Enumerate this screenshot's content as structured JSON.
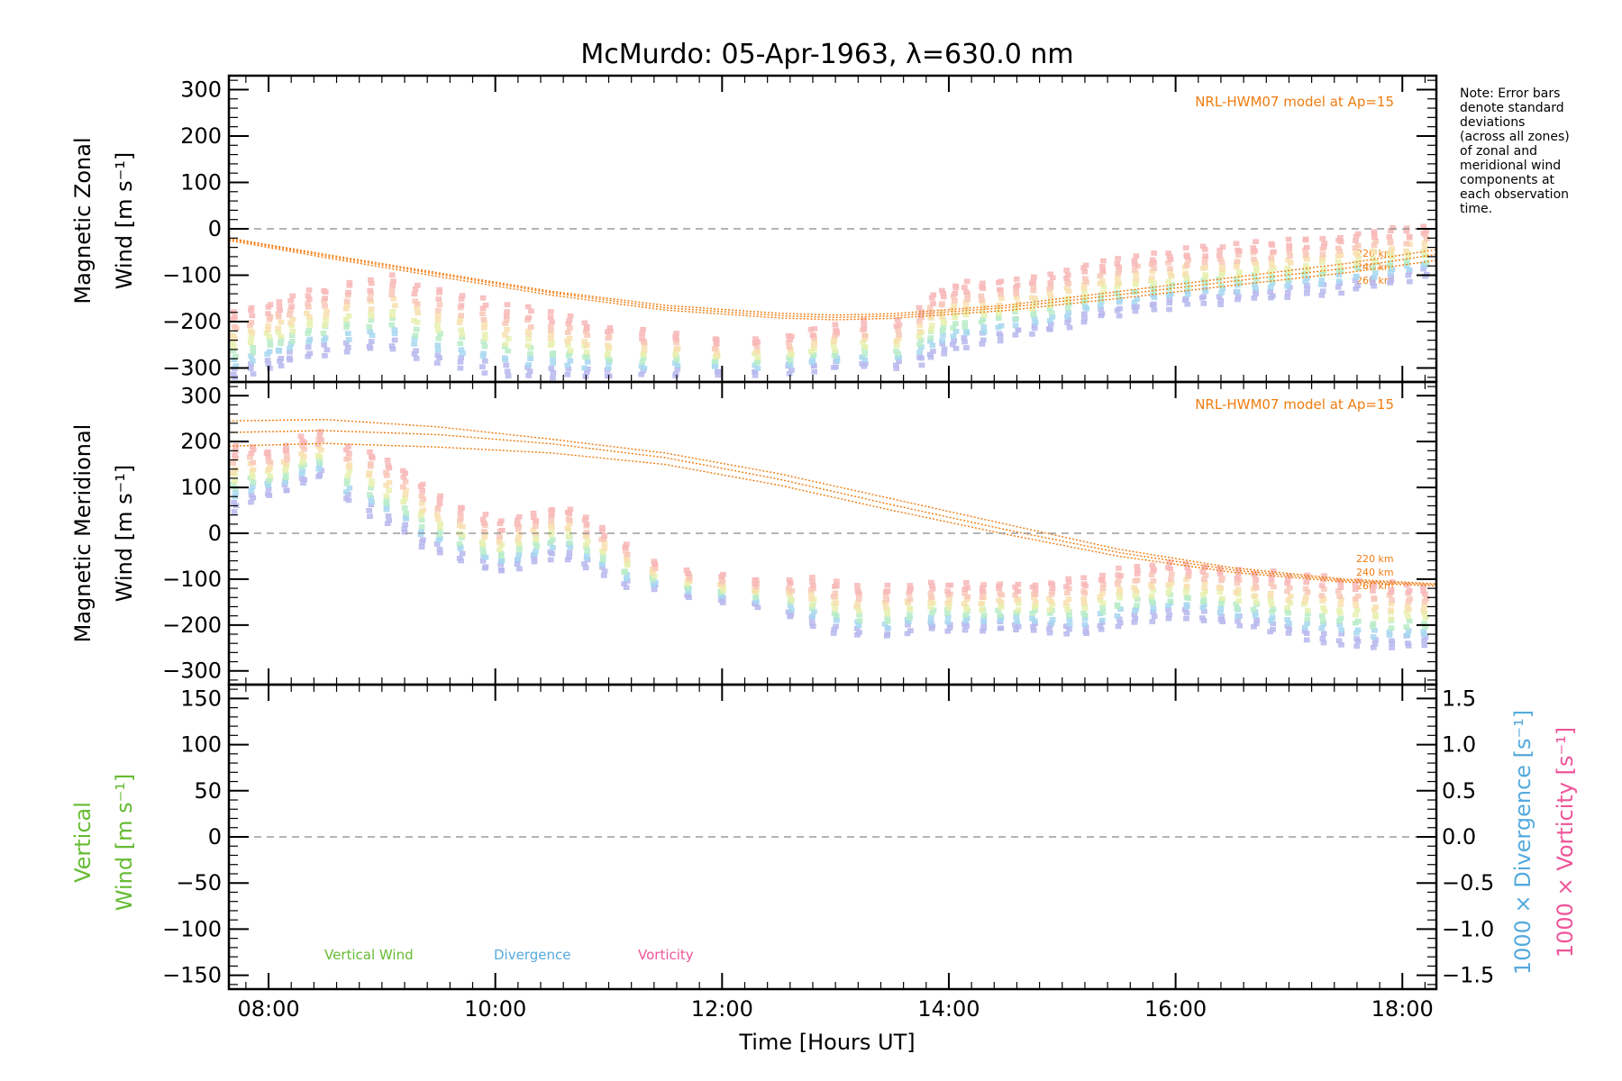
{
  "chart_data": {
    "type": "scatter",
    "title": "McMurdo: 05-Apr-1963, λ=630.0 nm",
    "note_lines": [
      "Note: Error bars",
      "denote standard",
      "deviations",
      "(across all zones)",
      "of zonal and",
      "meridional wind",
      "components at",
      "each observation",
      "time."
    ],
    "colors": {
      "model": "#f07c10",
      "vertical": "#66bb33",
      "divergence": "#55aadd",
      "vorticity": "#ee5599",
      "zero_line": "#888888"
    },
    "x": {
      "label": "Time [Hours UT]",
      "range_hours": [
        7.65,
        18.3
      ],
      "tick_values": [
        8,
        10,
        12,
        14,
        16,
        18
      ],
      "tick_labels": [
        "08:00",
        "10:00",
        "12:00",
        "14:00",
        "16:00",
        "18:00"
      ]
    },
    "panels": [
      {
        "id": "zonal",
        "ylabel_line1": "Magnetic Zonal",
        "ylabel_line2": "Wind [m s⁻¹]",
        "ylim": [
          -330,
          330
        ],
        "yticks": [
          300,
          200,
          100,
          0,
          -100,
          -200,
          -300
        ],
        "ytick_labels": [
          "300",
          "200",
          "100",
          "0",
          "−100",
          "−200",
          "−300"
        ],
        "model_label": "NRL-HWM07 model at Ap=15",
        "altitude_labels": [
          "220 km",
          "240 km",
          "260 km"
        ],
        "model_curves": [
          {
            "x": [
              7.65,
              8.5,
              9.5,
              10.5,
              11.5,
              12.5,
              13.0,
              13.5,
              14.5,
              15.5,
              16.5,
              17.5,
              18.3
            ],
            "y": [
              -20,
              -55,
              -95,
              -135,
              -165,
              -182,
              -186,
              -183,
              -165,
              -135,
              -105,
              -75,
              -45
            ]
          },
          {
            "x": [
              7.65,
              8.5,
              9.5,
              10.5,
              11.5,
              12.5,
              13.0,
              13.5,
              14.5,
              15.5,
              16.5,
              17.5,
              18.3
            ],
            "y": [
              -22,
              -58,
              -98,
              -138,
              -170,
              -187,
              -191,
              -188,
              -170,
              -142,
              -113,
              -85,
              -55
            ]
          },
          {
            "x": [
              7.65,
              8.5,
              9.5,
              10.5,
              11.5,
              12.5,
              13.0,
              13.5,
              14.5,
              15.5,
              16.5,
              17.5,
              18.3
            ],
            "y": [
              -25,
              -62,
              -103,
              -143,
              -175,
              -192,
              -196,
              -193,
              -176,
              -150,
              -122,
              -95,
              -68
            ]
          }
        ],
        "obs_times": [
          7.7,
          7.85,
          8.0,
          8.1,
          8.2,
          8.35,
          8.5,
          8.7,
          8.9,
          9.1,
          9.3,
          9.5,
          9.7,
          9.9,
          10.1,
          10.3,
          10.5,
          10.65,
          10.8,
          11.0,
          11.3,
          11.6,
          11.95,
          12.3,
          12.6,
          12.8,
          13.0,
          13.25,
          13.55,
          13.75,
          13.85,
          13.95,
          14.05,
          14.15,
          14.3,
          14.45,
          14.6,
          14.75,
          14.9,
          15.05,
          15.2,
          15.35,
          15.5,
          15.65,
          15.8,
          15.95,
          16.1,
          16.25,
          16.4,
          16.55,
          16.7,
          16.85,
          17.0,
          17.15,
          17.3,
          17.45,
          17.6,
          17.75,
          17.9,
          18.05,
          18.2
        ],
        "obs_center": [
          -250,
          -240,
          -230,
          -225,
          -215,
          -205,
          -200,
          -190,
          -185,
          -180,
          -200,
          -210,
          -220,
          -230,
          -240,
          -245,
          -250,
          -255,
          -260,
          -265,
          -270,
          -270,
          -275,
          -275,
          -270,
          -260,
          -255,
          -250,
          -250,
          -230,
          -210,
          -200,
          -190,
          -185,
          -180,
          -175,
          -170,
          -165,
          -160,
          -150,
          -140,
          -130,
          -125,
          -120,
          -115,
          -110,
          -105,
          -100,
          -100,
          -95,
          -90,
          -90,
          -85,
          -80,
          -80,
          -75,
          -70,
          -65,
          -60,
          -55,
          -50
        ],
        "obs_spread": [
          70,
          70,
          70,
          70,
          70,
          70,
          70,
          75,
          75,
          80,
          80,
          80,
          80,
          80,
          75,
          75,
          70,
          65,
          60,
          55,
          50,
          45,
          40,
          40,
          40,
          45,
          45,
          50,
          50,
          60,
          70,
          70,
          70,
          70,
          65,
          65,
          60,
          60,
          60,
          60,
          60,
          60,
          60,
          60,
          60,
          60,
          60,
          60,
          60,
          60,
          60,
          60,
          60,
          60,
          60,
          60,
          60,
          60,
          60,
          55,
          55
        ]
      },
      {
        "id": "meridional",
        "ylabel_line1": "Magnetic Meridional",
        "ylabel_line2": "Wind [m s⁻¹]",
        "ylim": [
          -330,
          330
        ],
        "yticks": [
          300,
          200,
          100,
          0,
          -100,
          -200,
          -300
        ],
        "ytick_labels": [
          "300",
          "200",
          "100",
          "0",
          "−100",
          "−200",
          "−300"
        ],
        "model_label": "NRL-HWM07 model at Ap=15",
        "altitude_labels": [
          "220 km",
          "240 km",
          "260 km"
        ],
        "model_curves": [
          {
            "x": [
              7.65,
              8.5,
              9.5,
              10.5,
              11.5,
              12.5,
              13.5,
              14.5,
              15.5,
              16.5,
              17.5,
              18.3
            ],
            "y": [
              245,
              248,
              232,
              205,
              175,
              130,
              75,
              20,
              -35,
              -75,
              -100,
              -110
            ]
          },
          {
            "x": [
              7.65,
              8.5,
              9.5,
              10.5,
              11.5,
              12.5,
              13.5,
              14.5,
              15.5,
              16.5,
              17.5,
              18.3
            ],
            "y": [
              220,
              224,
              215,
              195,
              165,
              118,
              62,
              8,
              -42,
              -80,
              -103,
              -112
            ]
          },
          {
            "x": [
              7.65,
              8.5,
              9.5,
              10.5,
              11.5,
              12.5,
              13.5,
              14.5,
              15.5,
              16.5,
              17.5,
              18.3
            ],
            "y": [
              190,
              196,
              188,
              175,
              150,
              105,
              50,
              -2,
              -50,
              -85,
              -106,
              -115
            ]
          }
        ],
        "obs_times": [
          7.7,
          7.85,
          8.0,
          8.15,
          8.3,
          8.45,
          8.7,
          8.9,
          9.05,
          9.2,
          9.35,
          9.5,
          9.7,
          9.9,
          10.05,
          10.2,
          10.35,
          10.5,
          10.65,
          10.8,
          10.95,
          11.15,
          11.4,
          11.7,
          12.0,
          12.3,
          12.6,
          12.8,
          13.0,
          13.2,
          13.45,
          13.65,
          13.85,
          14.0,
          14.15,
          14.3,
          14.45,
          14.6,
          14.75,
          14.9,
          15.05,
          15.2,
          15.35,
          15.5,
          15.65,
          15.8,
          15.95,
          16.1,
          16.25,
          16.4,
          16.55,
          16.7,
          16.85,
          17.0,
          17.15,
          17.3,
          17.45,
          17.6,
          17.75,
          17.9,
          18.05,
          18.2
        ],
        "obs_center": [
          120,
          130,
          130,
          140,
          160,
          170,
          130,
          110,
          90,
          70,
          40,
          20,
          0,
          -20,
          -30,
          -20,
          -10,
          0,
          0,
          -20,
          -40,
          -70,
          -90,
          -110,
          -120,
          -130,
          -140,
          -150,
          -160,
          -170,
          -170,
          -165,
          -160,
          -160,
          -160,
          -160,
          -160,
          -160,
          -160,
          -160,
          -160,
          -160,
          -150,
          -140,
          -135,
          -130,
          -125,
          -125,
          -130,
          -135,
          -140,
          -145,
          -150,
          -155,
          -160,
          -165,
          -170,
          -175,
          -180,
          -180,
          -180,
          -180
        ],
        "obs_spread": [
          70,
          60,
          50,
          50,
          50,
          50,
          60,
          70,
          70,
          70,
          70,
          60,
          60,
          60,
          55,
          55,
          55,
          55,
          55,
          55,
          50,
          50,
          30,
          30,
          30,
          30,
          40,
          50,
          55,
          55,
          55,
          50,
          50,
          50,
          50,
          50,
          50,
          50,
          50,
          55,
          60,
          60,
          60,
          60,
          60,
          60,
          60,
          60,
          60,
          60,
          60,
          60,
          65,
          65,
          70,
          70,
          70,
          70,
          70,
          70,
          65,
          65
        ]
      },
      {
        "id": "vertical",
        "ylabel_line1": "Vertical",
        "ylabel_line2": "Wind [m s⁻¹]",
        "ylim": [
          -165,
          165
        ],
        "yticks": [
          150,
          100,
          50,
          0,
          -50,
          -100,
          -150
        ],
        "ytick_labels": [
          "150",
          "100",
          "50",
          "0",
          "−50",
          "−100",
          "−150"
        ],
        "right_ylim": [
          -1.65,
          1.65
        ],
        "right_yticks": [
          1.5,
          1.0,
          0.5,
          0.0,
          -0.5,
          -1.0,
          -1.5
        ],
        "right_ytick_labels": [
          "1.5",
          "1.0",
          "0.5",
          "0.0",
          "−0.5",
          "−1.0",
          "−1.5"
        ],
        "right_label_divergence": "1000 × Divergence [s⁻¹]",
        "right_label_vorticity": "1000 × Vorticity [s⁻¹]",
        "legend": [
          "Vertical Wind",
          "Divergence",
          "Vorticity"
        ]
      }
    ]
  }
}
